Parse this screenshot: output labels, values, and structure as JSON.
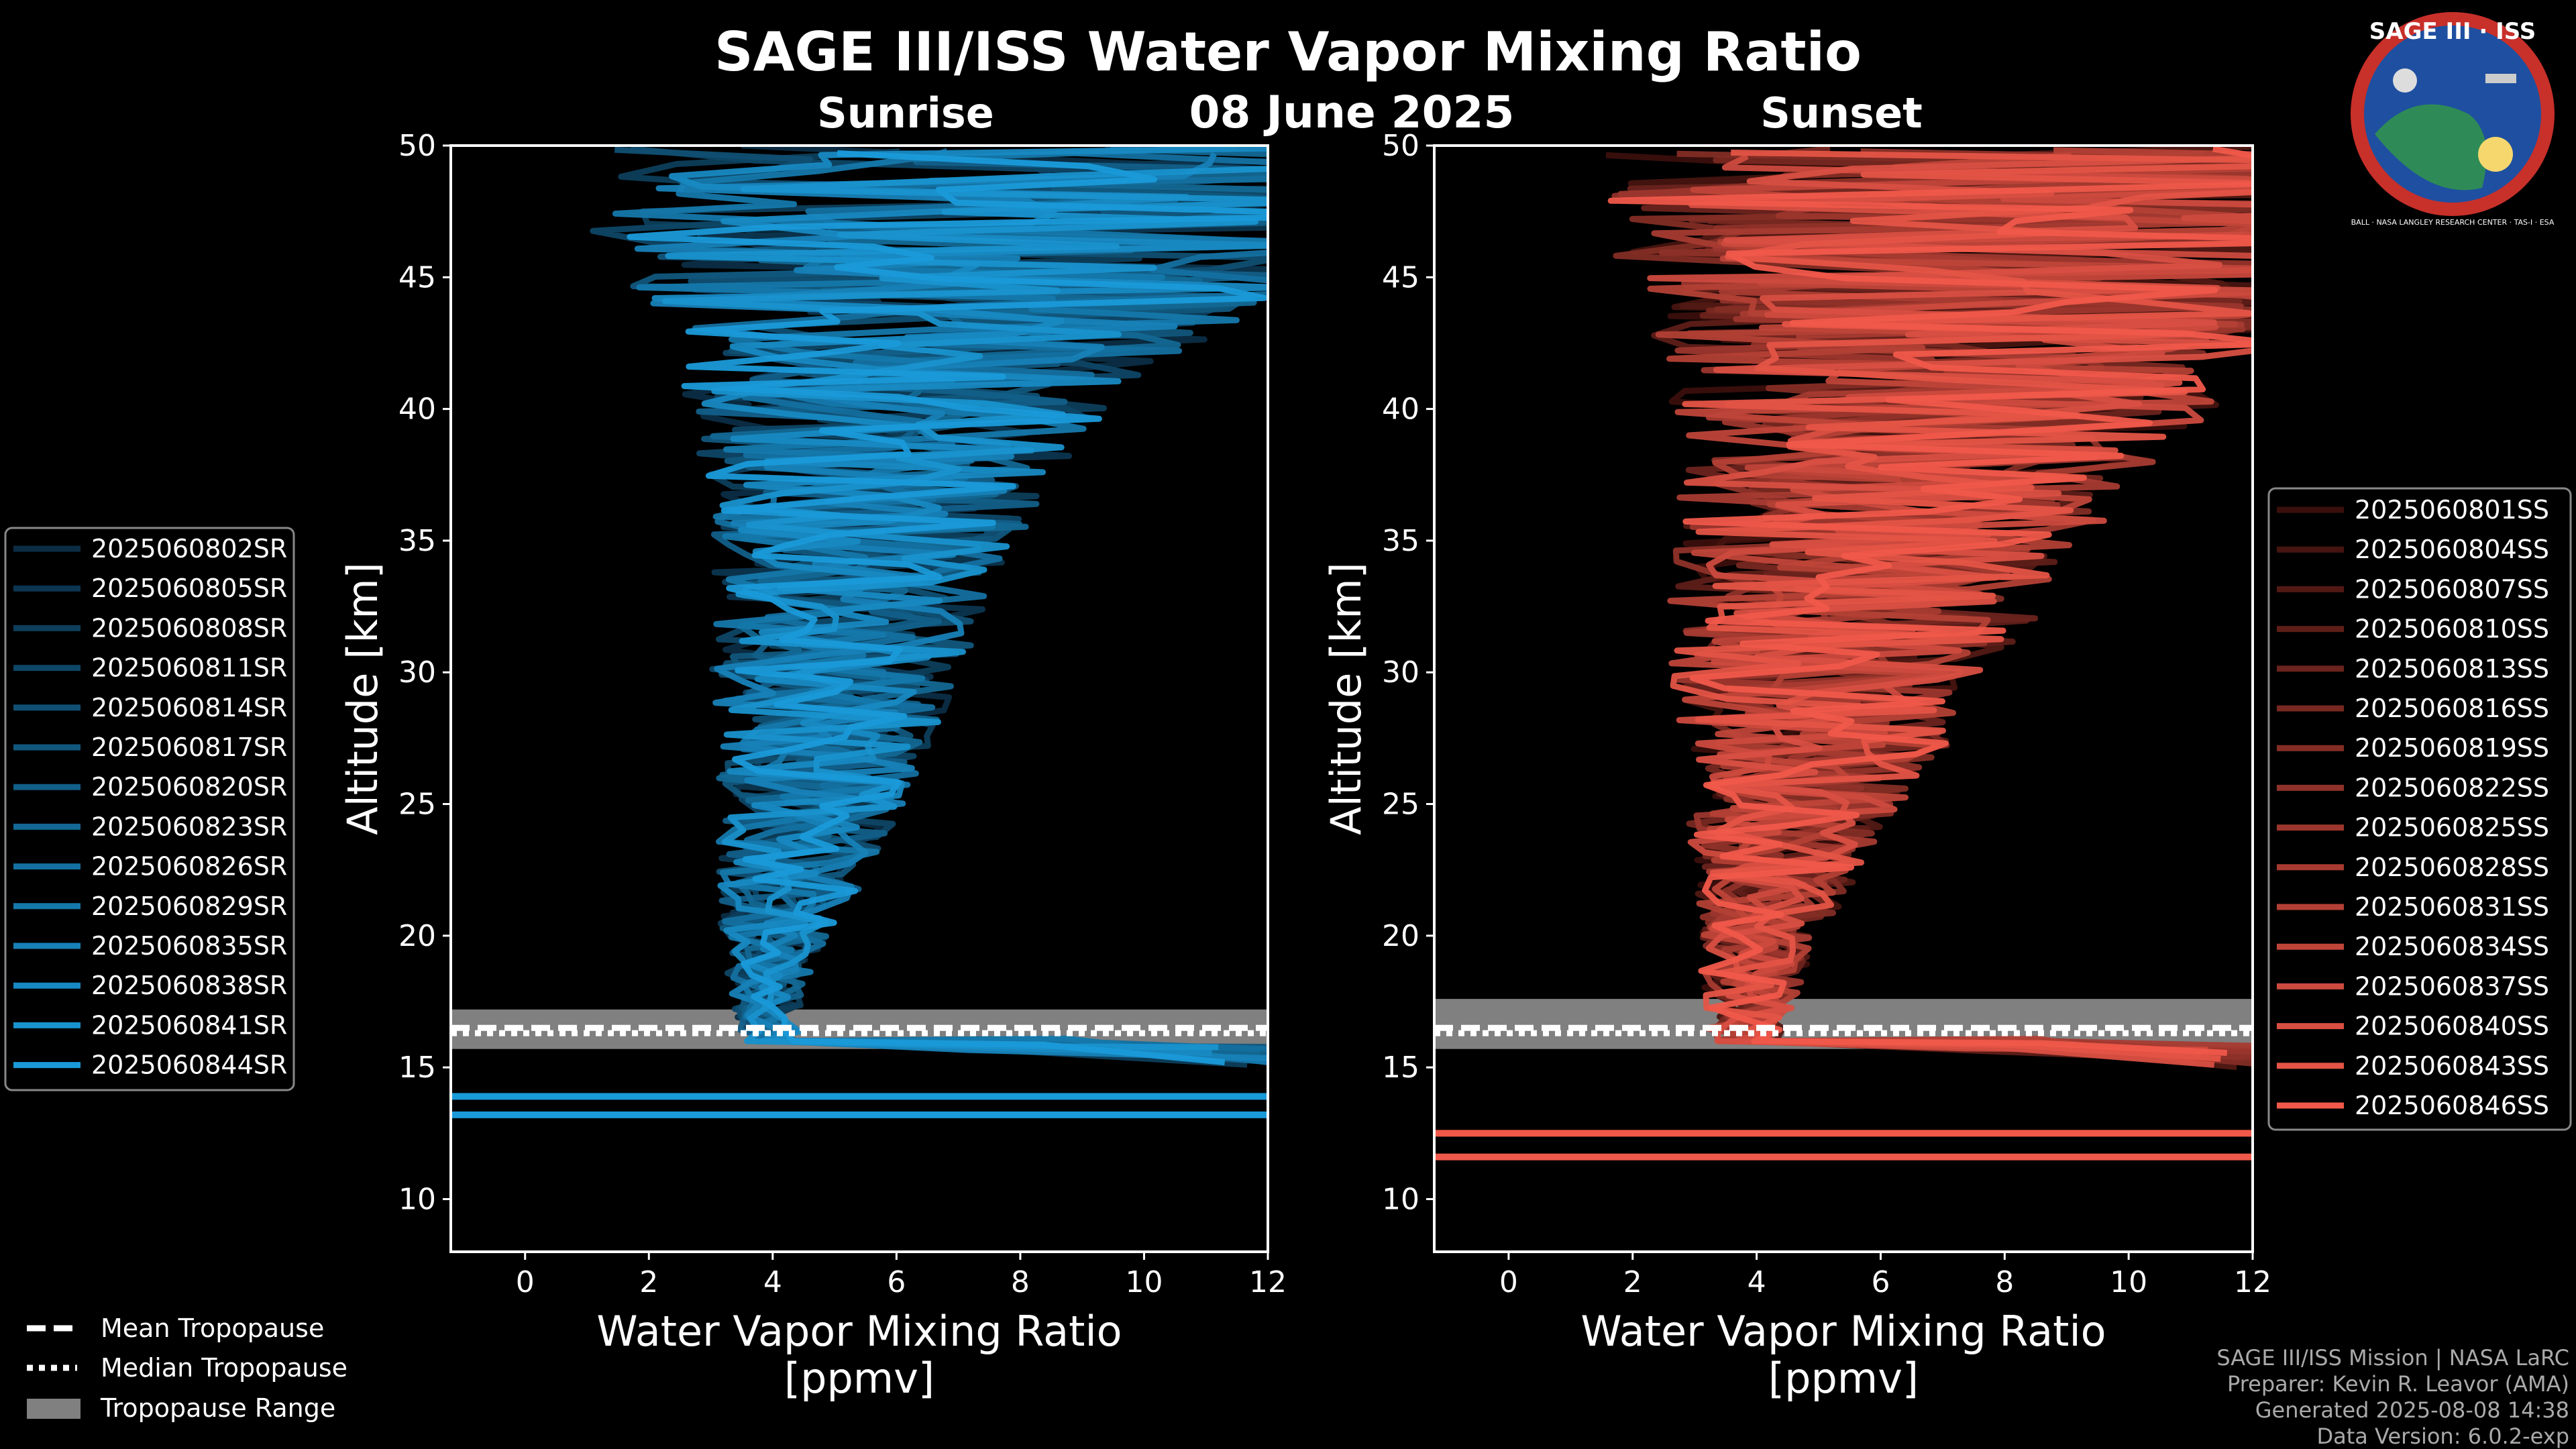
{
  "header": {
    "title": "SAGE III/ISS Water Vapor Mixing Ratio",
    "date": "08 June 2025"
  },
  "colors": {
    "sunrise": "#1a9ad9",
    "sunset": "#f0594a",
    "tropopause_range": "#808080",
    "background": "#000000"
  },
  "chart_data": [
    {
      "type": "line",
      "panel": "Sunrise",
      "title": "Sunrise",
      "xlabel": "Water Vapor Mixing Ratio\n[ppmv]",
      "xlabel_line1": "Water Vapor Mixing Ratio",
      "xlabel_line2": "[ppmv]",
      "ylabel": "Altitude [km]",
      "xlim": [
        -1.2,
        12
      ],
      "ylim": [
        8,
        50
      ],
      "xticks": [
        0,
        2,
        4,
        6,
        8,
        10,
        12
      ],
      "yticks": [
        10,
        15,
        20,
        25,
        30,
        35,
        40,
        45,
        50
      ],
      "legend_position": "left-center",
      "series_names": [
        "2025060802SR",
        "2025060805SR",
        "2025060808SR",
        "2025060811SR",
        "2025060814SR",
        "2025060817SR",
        "2025060820SR",
        "2025060823SR",
        "2025060826SR",
        "2025060829SR",
        "2025060835SR",
        "2025060838SR",
        "2025060841SR",
        "2025060844SR"
      ],
      "profile_envelope": {
        "altitude_km": [
          16,
          18,
          20,
          22,
          24,
          26,
          28,
          30,
          32,
          34,
          36,
          38,
          40,
          42,
          44,
          46,
          48,
          50
        ],
        "center_ppmv": [
          4.0,
          3.9,
          4.0,
          4.3,
          4.5,
          4.7,
          4.9,
          5.0,
          5.2,
          5.4,
          5.6,
          5.8,
          6.0,
          6.5,
          7.0,
          7.5,
          8.0,
          8.5
        ],
        "spread_ppmv": [
          0.5,
          0.6,
          0.9,
          1.2,
          1.4,
          1.6,
          1.8,
          2.0,
          2.2,
          2.4,
          2.6,
          3.0,
          3.5,
          4.0,
          5.0,
          6.5,
          7.0,
          7.5
        ]
      },
      "low_level_lines_km": [
        13.9,
        13.2
      ],
      "tropopause": {
        "mean_km": 16.5,
        "median_km": 16.3,
        "range_km": [
          15.7,
          17.2
        ]
      }
    },
    {
      "type": "line",
      "panel": "Sunset",
      "title": "Sunset",
      "xlabel": "Water Vapor Mixing Ratio\n[ppmv]",
      "xlabel_line1": "Water Vapor Mixing Ratio",
      "xlabel_line2": "[ppmv]",
      "ylabel": "Altitude [km]",
      "xlim": [
        -1.2,
        12
      ],
      "ylim": [
        8,
        50
      ],
      "xticks": [
        0,
        2,
        4,
        6,
        8,
        10,
        12
      ],
      "yticks": [
        10,
        15,
        20,
        25,
        30,
        35,
        40,
        45,
        50
      ],
      "legend_position": "right-center",
      "series_names": [
        "2025060801SS",
        "2025060804SS",
        "2025060807SS",
        "2025060810SS",
        "2025060813SS",
        "2025060816SS",
        "2025060819SS",
        "2025060822SS",
        "2025060825SS",
        "2025060828SS",
        "2025060831SS",
        "2025060834SS",
        "2025060837SS",
        "2025060840SS",
        "2025060843SS",
        "2025060846SS"
      ],
      "profile_envelope": {
        "altitude_km": [
          16,
          18,
          20,
          22,
          24,
          26,
          28,
          30,
          32,
          34,
          36,
          38,
          40,
          42,
          44,
          46,
          48,
          50
        ],
        "center_ppmv": [
          3.8,
          3.9,
          4.0,
          4.3,
          4.5,
          4.8,
          5.0,
          5.2,
          5.5,
          5.8,
          6.2,
          6.6,
          7.0,
          7.5,
          8.0,
          8.5,
          9.0,
          9.5
        ],
        "spread_ppmv": [
          0.6,
          0.8,
          1.0,
          1.3,
          1.6,
          1.9,
          2.3,
          2.6,
          3.0,
          3.2,
          3.5,
          3.8,
          4.5,
          5.0,
          6.0,
          7.0,
          7.5,
          8.0
        ]
      },
      "low_level_lines_km": [
        12.5,
        11.6
      ],
      "tropopause": {
        "mean_km": 16.5,
        "median_km": 16.3,
        "range_km": [
          15.7,
          17.6
        ]
      }
    }
  ],
  "tropopause_legend": {
    "mean": "Mean Tropopause",
    "median": "Median Tropopause",
    "range": "Tropopause Range"
  },
  "logo": {
    "name": "SAGE III · ISS",
    "ring_text": "BALL · NASA LANGLEY RESEARCH CENTER · TAS-I · ESA"
  },
  "credits": {
    "line1": "SAGE III/ISS Mission | NASA LaRC",
    "line2": "Preparer: Kevin R. Leavor (AMA)",
    "line3": "Generated 2025-08-08 14:38",
    "line4": "Data Version: 6.0.2-exp"
  }
}
